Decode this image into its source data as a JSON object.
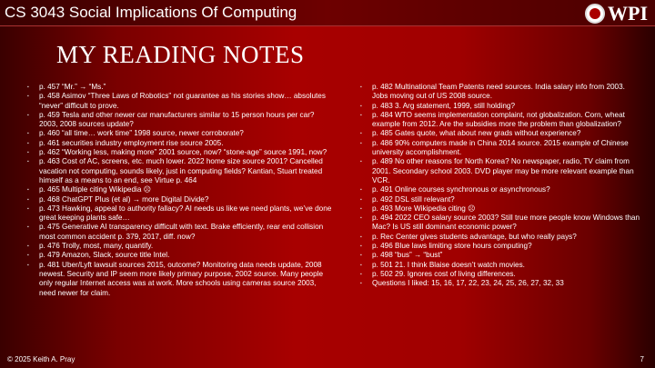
{
  "header": {
    "course_title": "CS 3043 Social Implications Of Computing",
    "logo_text": "WPI"
  },
  "slide": {
    "title": "MY READING NOTES"
  },
  "notes_left": [
    "p. 457 “Mr.” → “Ms.”",
    "p. 458 Asimov “Three Laws of Robotics” not guarantee as his stories show… absolutes “never” difficult to prove.",
    "p. 459 Tesla and other newer car manufacturers similar to 15 person hours per car? 2003, 2008 sources update?",
    "p. 460 “all time… work time” 1998 source, newer corroborate?",
    "p. 461 securities industry employment rise source 2005.",
    "p. 462 “Working less, making more” 2001 source, now? “stone-age” source 1991, now?",
    "p. 463 Cost of AC, screens, etc. much lower. 2022 home size source 2001? Cancelled vacation not computing, sounds likely, just in computing fields? Kantian, Stuart treated himself as a means to an end, see Virtue p. 464",
    "p. 465 Multiple citing Wikipedia ☹",
    "p. 468 ChatGPT Plus (et al) → more Digital Divide?",
    "p. 473 Hawking, appeal to authority fallacy? AI needs us like we need plants, we’ve done great keeping plants safe…",
    "p. 475 Generative AI transparency difficult with text. Brake efficiently, rear end collision most common accident p. 379, 2017, diff. now?",
    "p. 476 Trolly, most, many, quantify.",
    "p. 479 Amazon, Slack, source title Intel.",
    "p. 481 Uber/Lyft lawsuit sources 2015, outcome? Monitoring data needs update, 2008 newest. Security and IP seem more likely primary purpose, 2002 source. Many people only regular Internet access was at work. More schools using cameras source 2003, need newer for claim."
  ],
  "notes_right": [
    "p. 482 Multinational Team Patents need sources. India salary info from 2003. Jobs moving out of US 2008 source.",
    "p. 483 3. Arg statement, 1999, still holding?",
    "p. 484 WTO seems implementation complaint, not globalization. Corn, wheat example from 2012. Are the subsidies more the problem than globalization?",
    "p. 485 Gates quote, what about new grads without experience?",
    "p. 486 90% computers made in China 2014 source. 2015 example of Chinese university accomplishment.",
    "p. 489 No other reasons for North Korea? No newspaper, radio, TV claim from 2001. Secondary school 2003. DVD player may be more relevant example than VCR.",
    "p. 491 Online courses synchronous or asynchronous?",
    "p. 492 DSL still relevant?",
    "p. 493 More Wikipedia citing ☹",
    "p. 494 2022 CEO salary source 2003? Still true more people know Windows than Mac? Is US still dominant economic power?",
    "p. Rec Center gives students advantage, but who really pays?",
    "p. 496 Blue laws limiting store hours computing?",
    "p. 498 “bus” → “bust”",
    "p. 501 21. I think Blaise doesn’t watch movies.",
    "p. 502 29. Ignores cost of living differences.",
    "Questions I liked: 15, 16, 17, 22, 23, 24, 25, 26, 27, 32, 33"
  ],
  "footer": {
    "copyright": "© 2025 Keith A. Pray",
    "page_number": "7"
  }
}
